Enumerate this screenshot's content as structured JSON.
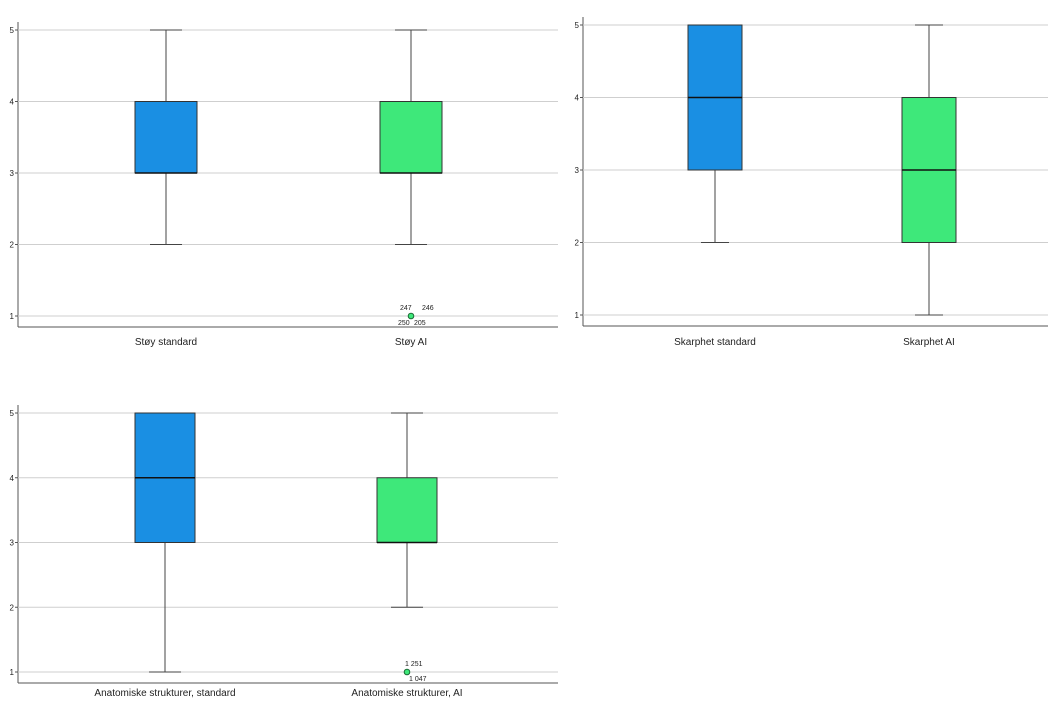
{
  "chart_data": [
    {
      "type": "boxplot",
      "ylim": [
        1,
        5
      ],
      "yticks": [
        "1",
        "2",
        "3",
        "4",
        "5"
      ],
      "grid": true,
      "colors": [
        "#1a8fe3",
        "#3ee87a"
      ],
      "categories": [
        "Støy standard",
        "Støy AI"
      ],
      "boxes": [
        {
          "min": 2,
          "q1": 3,
          "median": 3,
          "q3": 4,
          "max": 5,
          "outliers": []
        },
        {
          "min": 2,
          "q1": 3,
          "median": 3,
          "q3": 4,
          "max": 5,
          "outliers": [
            1
          ],
          "outlier_labels": [
            "247",
            "246",
            "250",
            "205"
          ]
        }
      ]
    },
    {
      "type": "boxplot",
      "ylim": [
        1,
        5
      ],
      "yticks": [
        "1",
        "2",
        "3",
        "4",
        "5"
      ],
      "grid": true,
      "colors": [
        "#1a8fe3",
        "#3ee87a"
      ],
      "categories": [
        "Skarphet standard",
        "Skarphet AI"
      ],
      "boxes": [
        {
          "min": 2,
          "q1": 3,
          "median": 4,
          "q3": 5,
          "max": 5,
          "outliers": []
        },
        {
          "min": 1,
          "q1": 2,
          "median": 3,
          "q3": 4,
          "max": 5,
          "outliers": []
        }
      ]
    },
    {
      "type": "boxplot",
      "ylim": [
        1,
        5
      ],
      "yticks": [
        "1",
        "2",
        "3",
        "4",
        "5"
      ],
      "grid": true,
      "colors": [
        "#1a8fe3",
        "#3ee87a"
      ],
      "categories": [
        "Anatomiske strukturer, standard",
        "Anatomiske strukturer, AI"
      ],
      "boxes": [
        {
          "min": 1,
          "q1": 3,
          "median": 4,
          "q3": 5,
          "max": 5,
          "outliers": []
        },
        {
          "min": 2,
          "q1": 3,
          "median": 3,
          "q3": 4,
          "max": 5,
          "outliers": [
            1
          ],
          "outlier_labels": [
            "1 251",
            "1 047"
          ]
        }
      ]
    }
  ]
}
